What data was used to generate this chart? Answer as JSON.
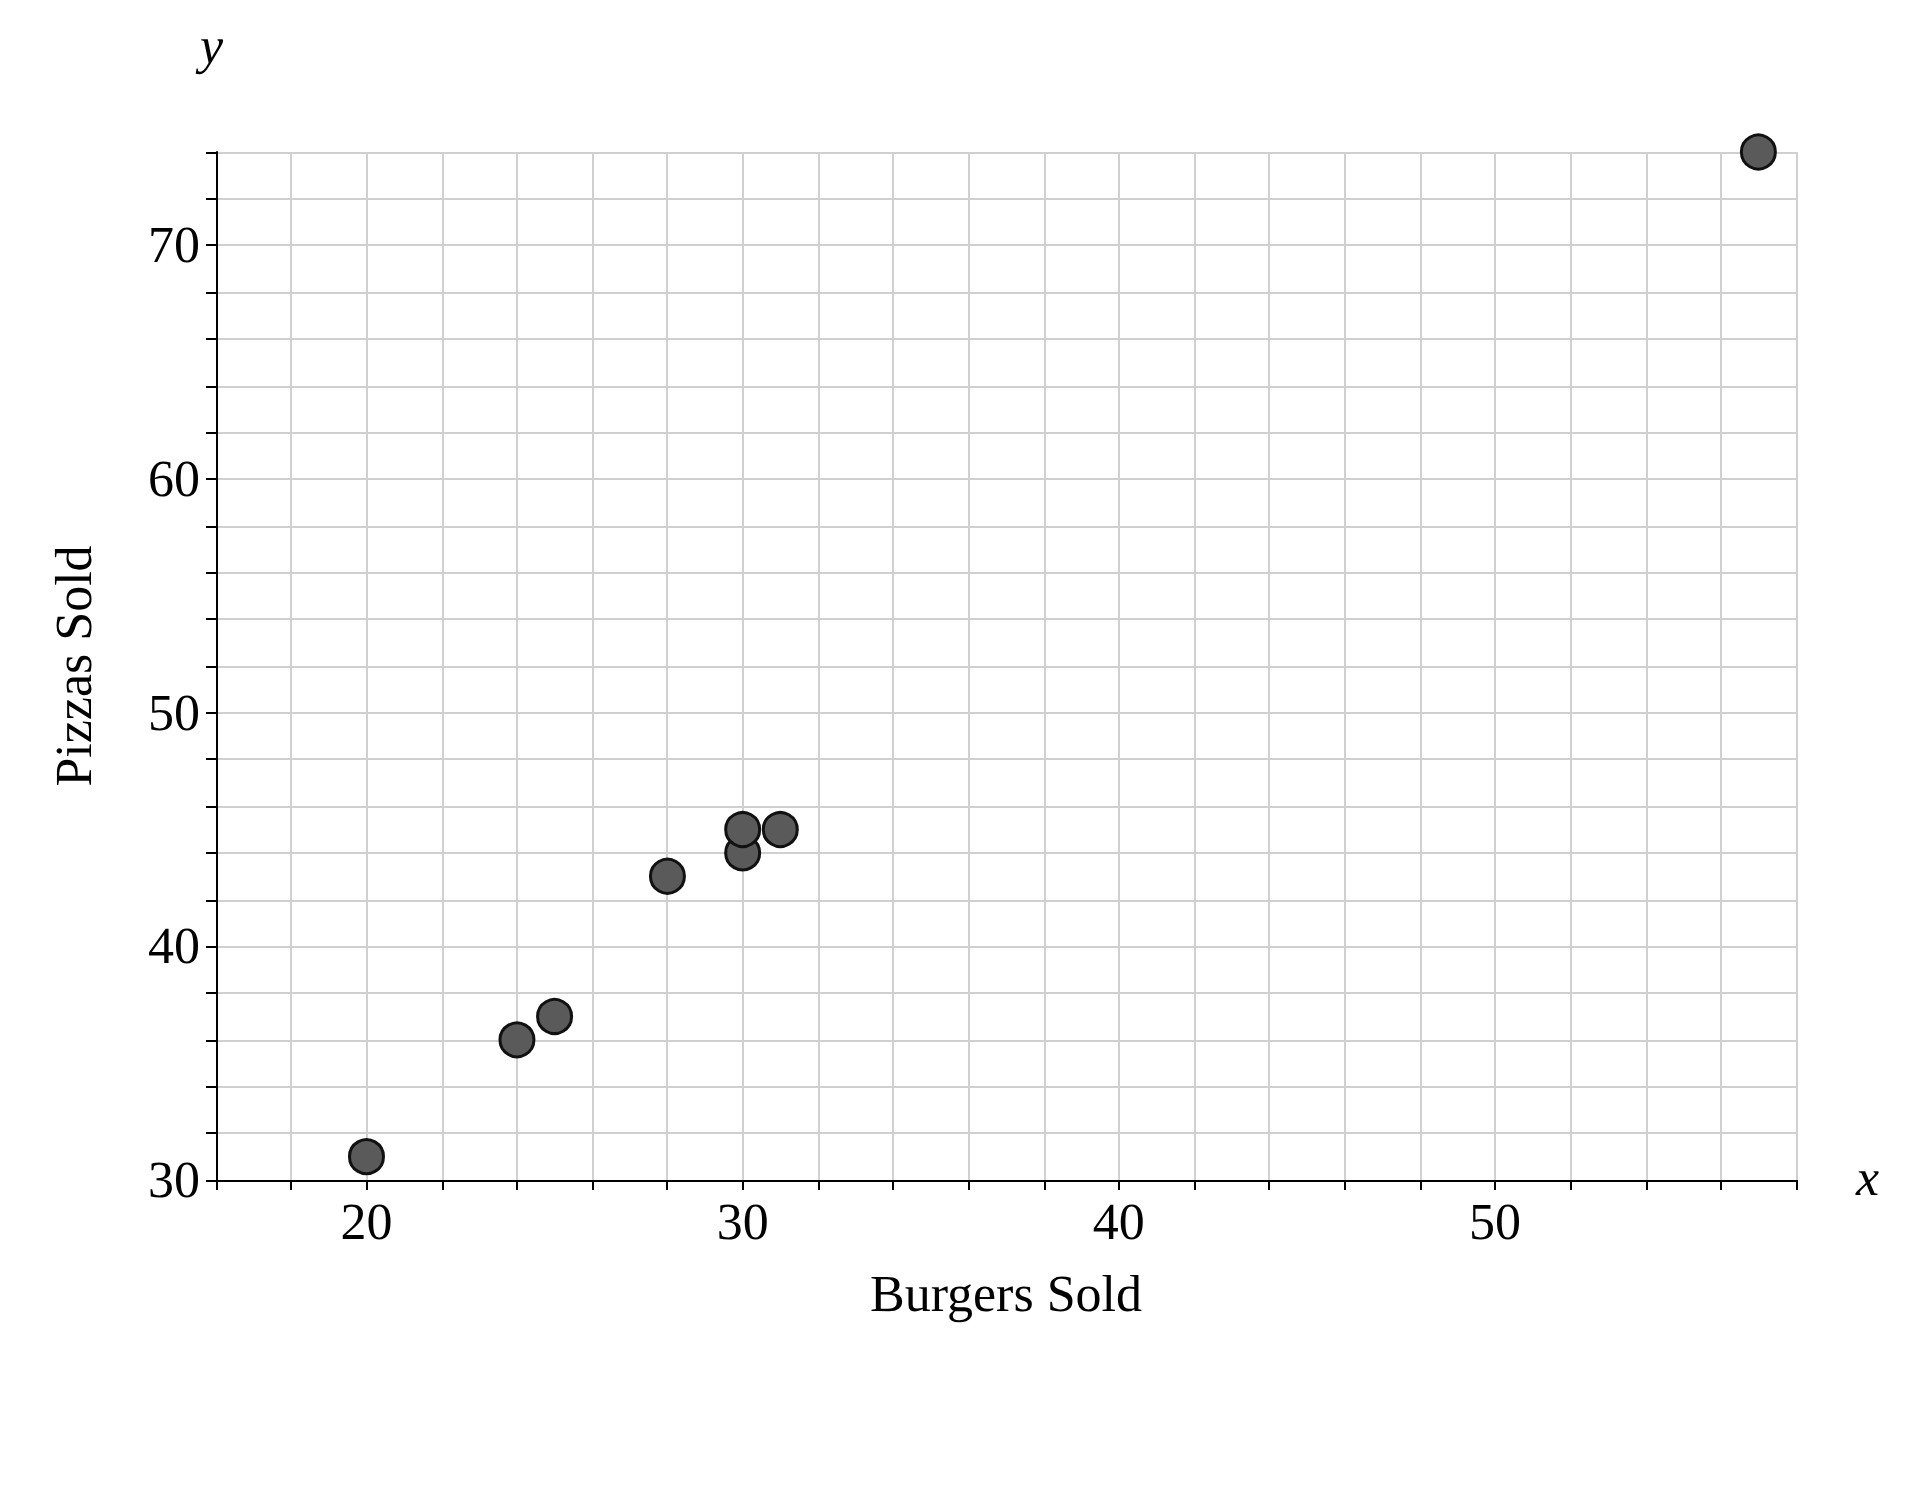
{
  "chart_data": {
    "type": "scatter",
    "xlabel": "Burgers Sold",
    "ylabel": "Pizzas Sold",
    "annotations": [
      "x",
      "y"
    ],
    "x": [
      20,
      24,
      25,
      28,
      30,
      30,
      31,
      57
    ],
    "series": [
      {
        "color": "#5a5a5a",
        "values": [
          31,
          36,
          37,
          43,
          44,
          45,
          45,
          74
        ]
      }
    ],
    "xlim": [
      16,
      58
    ],
    "ylim": [
      30,
      74
    ],
    "xticks": [
      20,
      30,
      40,
      50
    ],
    "yticks": [
      30,
      40,
      50,
      60,
      70
    ],
    "grid": true,
    "marker": "circle"
  }
}
